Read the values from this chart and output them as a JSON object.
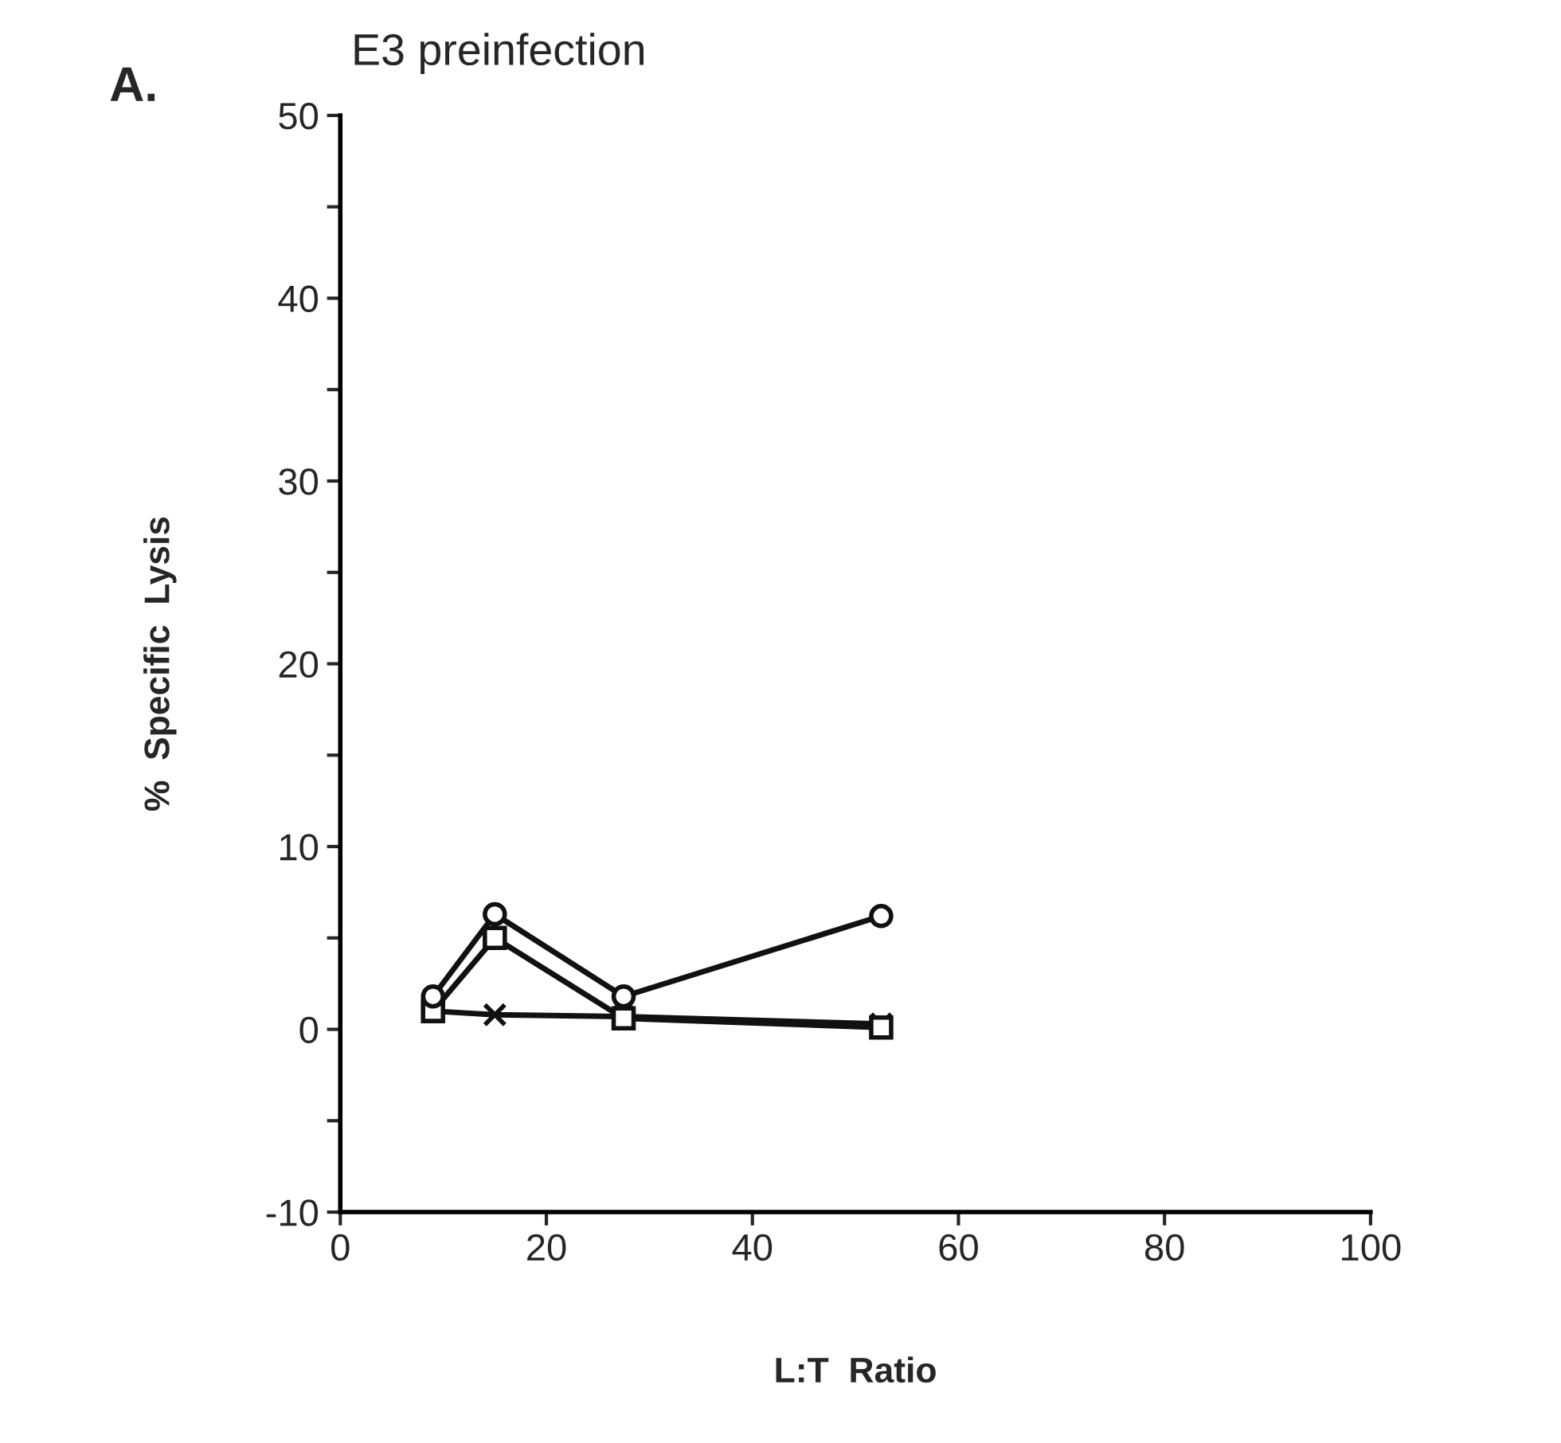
{
  "chart_data": {
    "type": "line",
    "title": "E3 preinfection",
    "xlabel": "L:T  Ratio",
    "ylabel": "%  Specific  Lysis",
    "annotations": [
      "A."
    ],
    "x": [
      9,
      15,
      27.5,
      52.5
    ],
    "series": [
      {
        "color": "#111111",
        "marker": "circle",
        "values": [
          1.8,
          6.3,
          1.8,
          6.2
        ]
      },
      {
        "color": "#111111",
        "marker": "square",
        "values": [
          1.0,
          5.0,
          0.6,
          0.1
        ]
      },
      {
        "color": "#111111",
        "marker": "cross",
        "values": [
          1.0,
          0.8,
          0.7,
          0.3
        ]
      }
    ],
    "xlim": [
      0,
      100
    ],
    "xticks": [
      0,
      20,
      40,
      60,
      80,
      100
    ],
    "ylim": [
      -10,
      50
    ],
    "yticks": [
      -10,
      {
        "value": -5,
        "label": null
      },
      0,
      {
        "value": 5,
        "label": null
      },
      10,
      {
        "value": 15,
        "label": null
      },
      20,
      {
        "value": 25,
        "label": null
      },
      30,
      {
        "value": 35,
        "label": null
      },
      40,
      {
        "value": 45,
        "label": null
      },
      50
    ],
    "grid": false,
    "legend": false
  }
}
